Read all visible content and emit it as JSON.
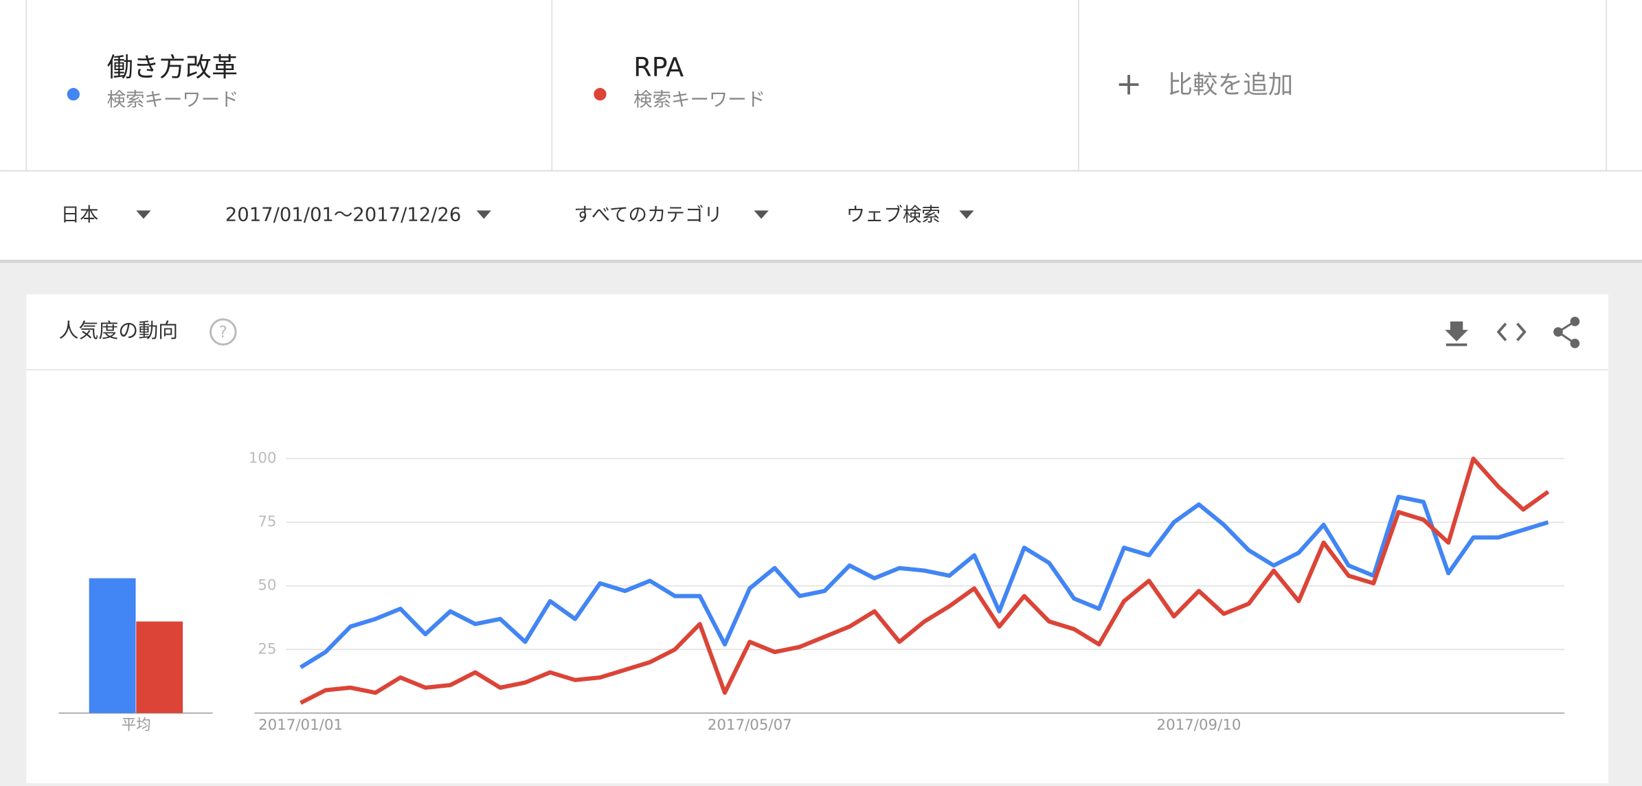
{
  "terms": [
    {
      "name": "働き方改革",
      "sub": "検索キーワード",
      "color": "#4285f4"
    },
    {
      "name": "RPA",
      "sub": "検索キーワード",
      "color": "#db4437"
    }
  ],
  "add_compare": "比較を追加",
  "filters": [
    "日本",
    "2017/01/01〜2017/12/26",
    "すべてのカテゴリ",
    "ウェブ検索"
  ],
  "card_title": "人気度の動向",
  "chart_data": {
    "type": "line",
    "categories": [
      "2017/01/01",
      null,
      null,
      null,
      null,
      null,
      null,
      null,
      null,
      null,
      null,
      null,
      null,
      null,
      null,
      null,
      null,
      null,
      "2017/05/07",
      null,
      null,
      null,
      null,
      null,
      null,
      null,
      null,
      null,
      null,
      null,
      null,
      null,
      null,
      null,
      null,
      null,
      "2017/09/10",
      null,
      null,
      null,
      null,
      null,
      null,
      null,
      null,
      null,
      null,
      null,
      null,
      null,
      null
    ],
    "series": [
      {
        "name": "働き方改革",
        "color": "#4285f4",
        "average": 53,
        "values": [
          18,
          24,
          34,
          37,
          41,
          31,
          40,
          35,
          37,
          28,
          44,
          37,
          51,
          48,
          52,
          46,
          46,
          27,
          49,
          57,
          46,
          48,
          58,
          53,
          57,
          56,
          54,
          62,
          40,
          65,
          59,
          45,
          41,
          65,
          62,
          75,
          82,
          74,
          64,
          58,
          63,
          74,
          58,
          54,
          85,
          83,
          55,
          69,
          69,
          72,
          75
        ]
      },
      {
        "name": "RPA",
        "color": "#db4437",
        "average": 36,
        "values": [
          4,
          9,
          10,
          8,
          14,
          10,
          11,
          16,
          10,
          12,
          16,
          13,
          14,
          17,
          20,
          25,
          35,
          8,
          28,
          24,
          26,
          30,
          34,
          40,
          28,
          36,
          42,
          49,
          34,
          46,
          36,
          33,
          27,
          44,
          52,
          38,
          48,
          39,
          43,
          56,
          44,
          67,
          54,
          51,
          79,
          76,
          67,
          100,
          89,
          80,
          87
        ]
      }
    ],
    "average_label": "平均",
    "ylim": [
      0,
      100
    ],
    "yticks": [
      25,
      50,
      75,
      100
    ],
    "grid": true
  }
}
